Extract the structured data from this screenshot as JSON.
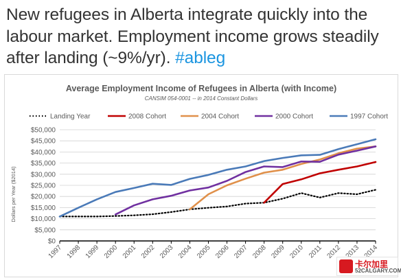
{
  "tweet": {
    "text": "New refugees in Alberta integrate quickly into the labour market. Employment income grows steadily after landing (~9%/yr).",
    "hashtag": "#ableg"
  },
  "colors": {
    "text": "#333333",
    "hashtag": "#1b95e0",
    "landing_year": "#000000",
    "cohort_2008": "#c00000",
    "cohort_2004": "#e0904a",
    "cohort_2000": "#7030a0",
    "cohort_1997": "#4a7ab8"
  },
  "watermark": {
    "line1": "卡尔加里",
    "line2": "52CALGARY.COM"
  },
  "chart_data": {
    "type": "line",
    "title": "Average Employment  Income of Refugees in Alberta (with Income)",
    "subtitle": "CANSIM 054-0001 -- in 2014 Constant Dollars",
    "xlabel": "",
    "ylabel": "Dollars per Year ($2014)",
    "ylim": [
      0,
      50000
    ],
    "yticks": [
      "$0",
      "$5,000",
      "$10,000",
      "$15,000",
      "$20,000",
      "$25,000",
      "$30,000",
      "$35,000",
      "$40,000",
      "$45,000",
      "$50,000"
    ],
    "grid": true,
    "legend_position": "top",
    "categories": [
      "1997",
      "1998",
      "1999",
      "2000",
      "2001",
      "2002",
      "2003",
      "2004",
      "2005",
      "2006",
      "2007",
      "2008",
      "2009",
      "2010",
      "2011",
      "2012",
      "2013",
      "2014"
    ],
    "series": [
      {
        "name": "Landing Year",
        "style": "dotted",
        "color": "#000000",
        "values": [
          11000,
          11000,
          11000,
          11200,
          11500,
          12000,
          13000,
          14200,
          14900,
          15500,
          16800,
          17200,
          19000,
          21500,
          19500,
          21500,
          21000,
          23000
        ]
      },
      {
        "name": "2008 Cohort",
        "style": "solid",
        "color": "#c00000",
        "values": [
          null,
          null,
          null,
          null,
          null,
          null,
          null,
          null,
          null,
          null,
          null,
          17200,
          25600,
          27700,
          30400,
          32000,
          33500,
          35500
        ]
      },
      {
        "name": "2004 Cohort",
        "style": "solid",
        "color": "#e0904a",
        "values": [
          null,
          null,
          null,
          null,
          null,
          null,
          null,
          14200,
          21000,
          25000,
          28000,
          30700,
          32000,
          34600,
          36600,
          39400,
          41500,
          42500
        ]
      },
      {
        "name": "2000 Cohort",
        "style": "solid",
        "color": "#7030a0",
        "values": [
          null,
          null,
          null,
          11900,
          16000,
          18700,
          20300,
          22700,
          24000,
          27000,
          31000,
          33500,
          33200,
          35700,
          35600,
          38800,
          40600,
          42500
        ]
      },
      {
        "name": "1997 Cohort",
        "style": "solid",
        "color": "#4a7ab8",
        "values": [
          11000,
          14900,
          18700,
          22000,
          23800,
          25700,
          25200,
          27900,
          29700,
          32000,
          33500,
          35900,
          37300,
          38500,
          38700,
          41300,
          43500,
          45700
        ]
      }
    ]
  }
}
